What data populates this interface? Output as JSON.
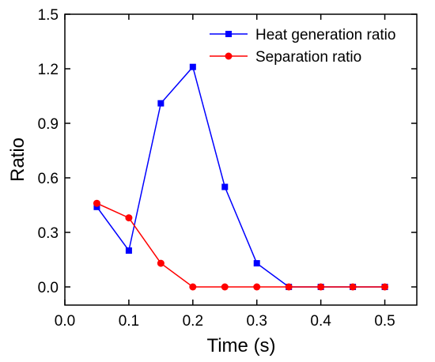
{
  "chart_data": {
    "type": "line",
    "xlabel": "Time (s)",
    "ylabel": "Ratio",
    "xlim": [
      0.0,
      0.55
    ],
    "ylim": [
      -0.1,
      1.5
    ],
    "xticks": [
      0.0,
      0.1,
      0.2,
      0.3,
      0.4,
      0.5
    ],
    "xtick_labels": [
      "0.0",
      "0.1",
      "0.2",
      "0.3",
      "0.4",
      "0.5"
    ],
    "yticks": [
      0.0,
      0.3,
      0.6,
      0.9,
      1.2,
      1.5
    ],
    "ytick_labels": [
      "0.0",
      "0.3",
      "0.6",
      "0.9",
      "1.2",
      "1.5"
    ],
    "grid": false,
    "legend_position": "top-right",
    "x": [
      0.05,
      0.1,
      0.15,
      0.2,
      0.25,
      0.3,
      0.35,
      0.4,
      0.45,
      0.5
    ],
    "series": [
      {
        "name": "Heat generation ratio",
        "color": "#0000ff",
        "marker": "square",
        "values": [
          0.44,
          0.2,
          1.01,
          1.21,
          0.55,
          0.13,
          0.0,
          0.0,
          0.0,
          0.0
        ]
      },
      {
        "name": "Separation ratio",
        "color": "#ff0000",
        "marker": "circle",
        "values": [
          0.46,
          0.38,
          0.13,
          0.0,
          0.0,
          0.0,
          0.0,
          0.0,
          0.0,
          0.0
        ]
      }
    ]
  }
}
